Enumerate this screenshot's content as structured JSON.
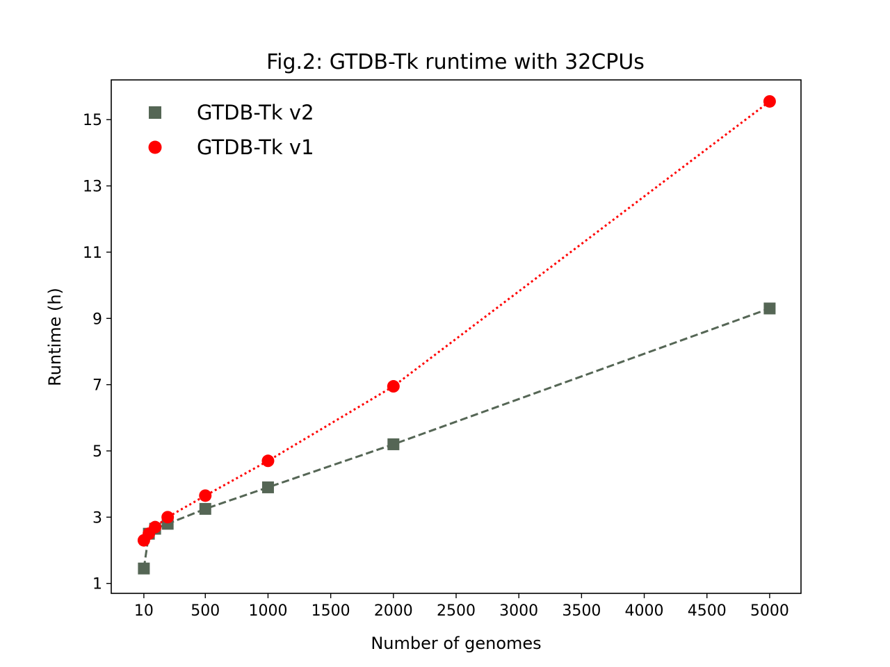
{
  "chart_data": {
    "type": "line",
    "title": "Fig.2: GTDB-Tk runtime with 32CPUs",
    "xlabel": "Number of genomes",
    "ylabel": "Runtime (h)",
    "xlim": [
      -250,
      5250
    ],
    "ylim": [
      0.7,
      16.2
    ],
    "xticks": [
      10,
      500,
      1000,
      1500,
      2000,
      2500,
      3000,
      3500,
      4000,
      4500,
      5000
    ],
    "yticks": [
      1,
      3,
      5,
      7,
      9,
      11,
      13,
      15
    ],
    "grid": false,
    "legend_position": "top-left",
    "series": [
      {
        "name": "GTDB-Tk v2",
        "marker": "square",
        "line_style": "dashed",
        "color": "#556655",
        "x": [
          10,
          50,
          100,
          200,
          500,
          1000,
          2000,
          5000
        ],
        "y": [
          1.45,
          2.5,
          2.65,
          2.8,
          3.25,
          3.9,
          5.2,
          9.3
        ]
      },
      {
        "name": "GTDB-Tk v1",
        "marker": "circle",
        "line_style": "dotted",
        "color": "#ff0000",
        "x": [
          10,
          50,
          100,
          200,
          500,
          1000,
          2000,
          5000
        ],
        "y": [
          2.3,
          2.5,
          2.7,
          3.0,
          3.65,
          4.7,
          6.95,
          15.55
        ]
      }
    ]
  }
}
